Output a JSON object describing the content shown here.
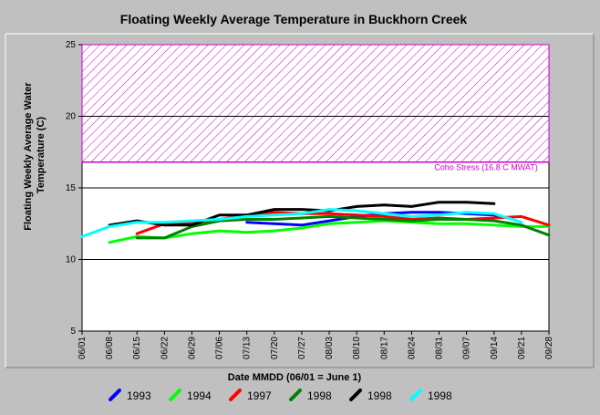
{
  "chart_data": {
    "type": "line",
    "title": "Floating Weekly Average Temperature in Buckhorn Creek",
    "xlabel": "Date MMDD (06/01 = June 1)",
    "ylabel_line1": "Floating Weekly Average Water",
    "ylabel_line2": "Temperature (C)",
    "ylim": [
      5,
      25
    ],
    "yticks": [
      5,
      10,
      15,
      20,
      25
    ],
    "grid_lines_y": [
      10,
      15,
      20
    ],
    "x_categories": [
      "06/01",
      "06/08",
      "06/15",
      "06/22",
      "06/29",
      "07/06",
      "07/13",
      "07/20",
      "07/27",
      "08/03",
      "08/10",
      "08/17",
      "08/24",
      "08/31",
      "09/07",
      "09/14",
      "09/21",
      "09/28"
    ],
    "stress_band": {
      "from": 16.8,
      "to": 25,
      "label": "Coho Stress (16.8 C MWAT)",
      "color": "#cc00cc"
    },
    "series": [
      {
        "name": "1993",
        "color": "#0000ff",
        "x": [
          6,
          7,
          8,
          9,
          10,
          11,
          12,
          13,
          14,
          15,
          15.5
        ],
        "y": [
          12.6,
          12.5,
          12.4,
          12.7,
          13.0,
          13.2,
          13.3,
          13.3,
          13.2,
          13.1,
          12.9
        ]
      },
      {
        "name": "1994",
        "color": "#00ff00",
        "x": [
          1,
          2,
          3,
          4,
          5,
          6,
          7,
          8,
          9,
          10,
          11,
          12,
          13,
          14,
          15,
          16,
          17
        ],
        "y": [
          11.2,
          11.6,
          11.5,
          11.8,
          12.0,
          11.9,
          12.0,
          12.2,
          12.5,
          12.6,
          12.7,
          12.6,
          12.5,
          12.5,
          12.4,
          12.3,
          12.3
        ]
      },
      {
        "name": "1997",
        "color": "#ff0000",
        "x": [
          2,
          3,
          4,
          5,
          6,
          7,
          8,
          9,
          10,
          11,
          12,
          13,
          14,
          15,
          16,
          17
        ],
        "y": [
          11.8,
          12.5,
          12.6,
          12.8,
          13.1,
          13.3,
          13.2,
          13.2,
          13.1,
          13.0,
          12.8,
          12.9,
          12.8,
          12.9,
          13.0,
          12.4
        ]
      },
      {
        "name": "1998",
        "color": "#008000",
        "x": [
          2,
          3,
          4,
          5,
          6,
          7,
          8,
          9,
          10,
          11,
          12,
          13,
          14,
          15,
          16,
          17
        ],
        "y": [
          11.5,
          11.5,
          12.3,
          12.7,
          12.8,
          12.8,
          12.9,
          13.0,
          12.9,
          12.8,
          12.7,
          12.8,
          12.8,
          12.7,
          12.4,
          11.7
        ]
      },
      {
        "name": "1998",
        "color": "#000000",
        "x": [
          1,
          2,
          3,
          4,
          5,
          6,
          7,
          8,
          9,
          10,
          11,
          12,
          13,
          14,
          15
        ],
        "y": [
          12.4,
          12.7,
          12.4,
          12.4,
          13.1,
          13.1,
          13.5,
          13.5,
          13.4,
          13.7,
          13.8,
          13.7,
          14.0,
          14.0,
          13.9
        ]
      },
      {
        "name": "1998",
        "color": "#00ffff",
        "x": [
          0,
          1,
          2,
          3,
          4,
          5,
          6,
          7,
          8,
          9,
          10,
          11,
          12,
          13,
          14,
          15,
          16
        ],
        "y": [
          11.6,
          12.3,
          12.6,
          12.6,
          12.7,
          12.8,
          13.0,
          13.1,
          13.2,
          13.5,
          13.4,
          13.2,
          13.0,
          13.1,
          13.3,
          13.2,
          12.6
        ]
      }
    ]
  }
}
